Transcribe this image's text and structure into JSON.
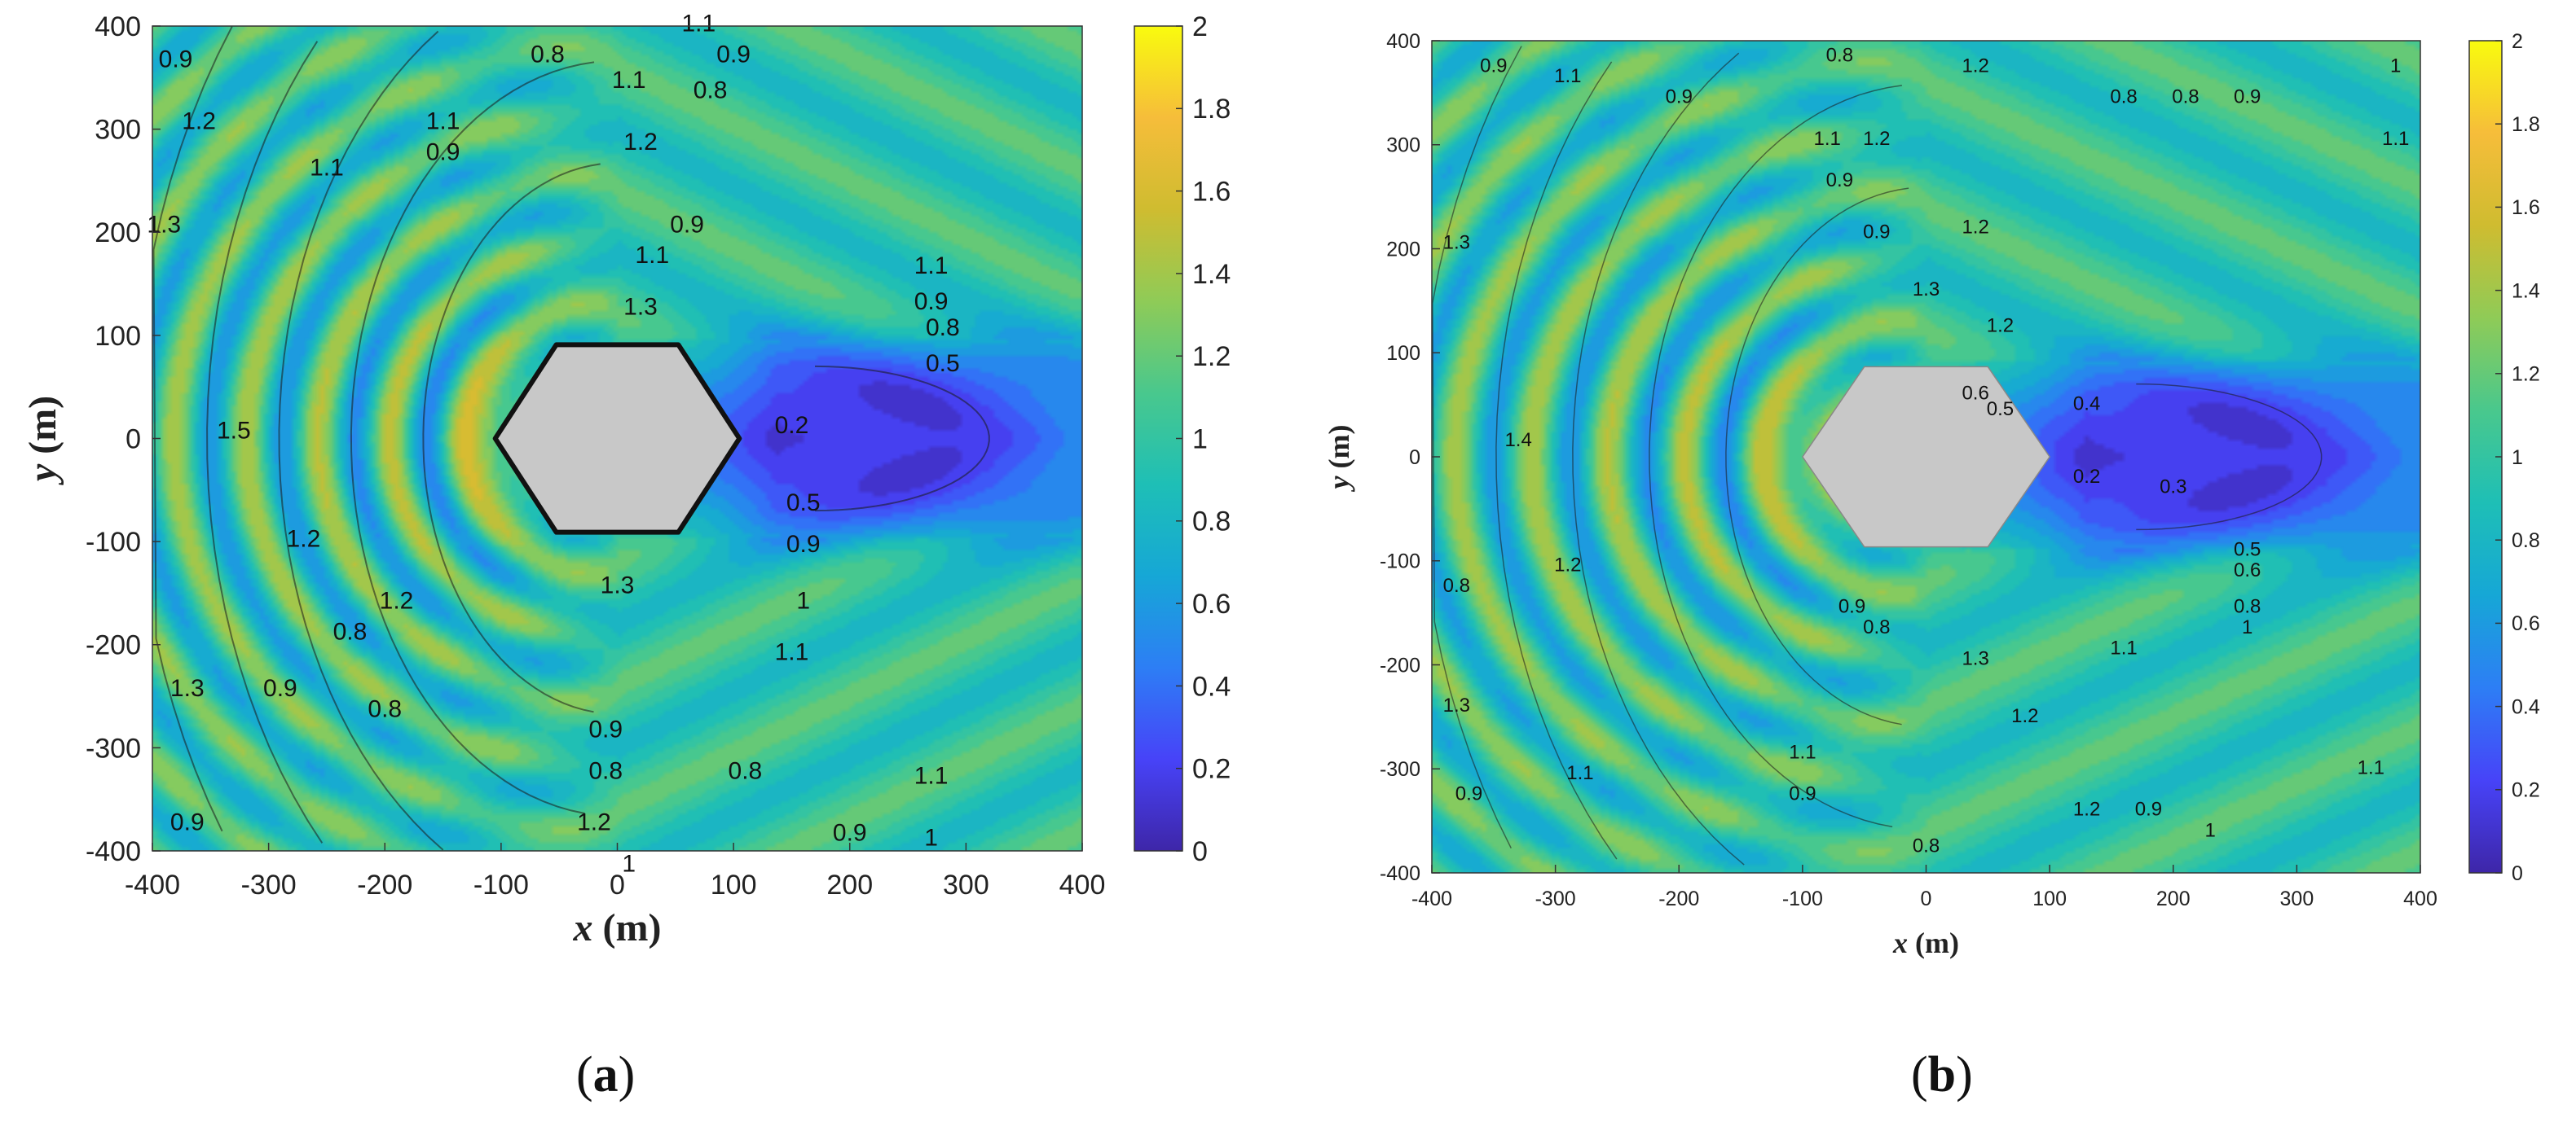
{
  "chart_data": [
    {
      "type": "heatmap",
      "panel_label": "a",
      "x_axis_name": "x",
      "y_axis_name": "y",
      "unit": "(m)",
      "xlim": [
        -400,
        400
      ],
      "ylim": [
        -400,
        400
      ],
      "xticks": [
        -400,
        -300,
        -200,
        -100,
        0,
        100,
        200,
        300,
        400
      ],
      "yticks": [
        -400,
        -300,
        -200,
        -100,
        0,
        100,
        200,
        300,
        400
      ],
      "colorbar": {
        "min": 0,
        "max": 2,
        "ticks": [
          0,
          0.2,
          0.4,
          0.6,
          0.8,
          1,
          1.2,
          1.4,
          1.6,
          1.8,
          2
        ]
      },
      "colormap": [
        "#3e26a8",
        "#4743f8",
        "#2d7ef5",
        "#16a7d6",
        "#1ebfb6",
        "#49c88d",
        "#8fcb57",
        "#cfbc30",
        "#f6bd3a",
        "#f9fb0e"
      ],
      "obstacle_color": "#c8c8c8",
      "obstacle_radius": 105,
      "contour_labels": [
        {
          "text": "0.8",
          "x": -60,
          "y": 365
        },
        {
          "text": "1.1",
          "x": 10,
          "y": 340
        },
        {
          "text": "1.2",
          "x": 20,
          "y": 280
        },
        {
          "text": "1.1",
          "x": 70,
          "y": 395
        },
        {
          "text": "0.9",
          "x": 100,
          "y": 365
        },
        {
          "text": "0.8",
          "x": 80,
          "y": 330
        },
        {
          "text": "0.9",
          "x": 60,
          "y": 200
        },
        {
          "text": "1.1",
          "x": 30,
          "y": 170
        },
        {
          "text": "1.3",
          "x": 20,
          "y": 120
        },
        {
          "text": "1.1",
          "x": 270,
          "y": 160
        },
        {
          "text": "0.9",
          "x": 270,
          "y": 125
        },
        {
          "text": "0.8",
          "x": 280,
          "y": 100
        },
        {
          "text": "0.5",
          "x": 280,
          "y": 65
        },
        {
          "text": "0.2",
          "x": 150,
          "y": 5
        },
        {
          "text": "0.5",
          "x": 160,
          "y": -70
        },
        {
          "text": "0.9",
          "x": 160,
          "y": -110
        },
        {
          "text": "1.3",
          "x": 0,
          "y": -150
        },
        {
          "text": "1",
          "x": 160,
          "y": -165
        },
        {
          "text": "1.1",
          "x": 150,
          "y": -215
        },
        {
          "text": "0.9",
          "x": -10,
          "y": -290
        },
        {
          "text": "0.8",
          "x": -10,
          "y": -330
        },
        {
          "text": "0.8",
          "x": 110,
          "y": -330
        },
        {
          "text": "1.2",
          "x": -20,
          "y": -380
        },
        {
          "text": "1.1",
          "x": 270,
          "y": -335
        },
        {
          "text": "0.9",
          "x": 200,
          "y": -390
        },
        {
          "text": "1",
          "x": 270,
          "y": -395
        },
        {
          "text": "1",
          "x": 10,
          "y": -420
        },
        {
          "text": "1.2",
          "x": -270,
          "y": -105
        },
        {
          "text": "0.8",
          "x": -230,
          "y": -195
        },
        {
          "text": "1.2",
          "x": -190,
          "y": -165
        },
        {
          "text": "0.9",
          "x": -290,
          "y": -250
        },
        {
          "text": "0.8",
          "x": -200,
          "y": -270
        },
        {
          "text": "1.3",
          "x": -370,
          "y": -250
        },
        {
          "text": "0.9",
          "x": -370,
          "y": -380
        },
        {
          "text": "1.1",
          "x": -150,
          "y": 300
        },
        {
          "text": "0.9",
          "x": -150,
          "y": 270
        },
        {
          "text": "1.1",
          "x": -250,
          "y": 255
        },
        {
          "text": "0.9",
          "x": -380,
          "y": 360
        },
        {
          "text": "1.2",
          "x": -360,
          "y": 300
        },
        {
          "text": "1.3",
          "x": -390,
          "y": 200
        },
        {
          "text": "1.5",
          "x": -330,
          "y": 0
        }
      ]
    },
    {
      "type": "heatmap",
      "panel_label": "b",
      "x_axis_name": "x",
      "y_axis_name": "y",
      "unit": "(m)",
      "xlim": [
        -400,
        400
      ],
      "ylim": [
        -400,
        400
      ],
      "xticks": [
        -400,
        -300,
        -200,
        -100,
        0,
        100,
        200,
        300,
        400
      ],
      "yticks": [
        -400,
        -300,
        -200,
        -100,
        0,
        100,
        200,
        300,
        400
      ],
      "colorbar": {
        "min": 0,
        "max": 2,
        "ticks": [
          0,
          0.2,
          0.4,
          0.6,
          0.8,
          1,
          1.2,
          1.4,
          1.6,
          1.8,
          2
        ]
      },
      "colormap": [
        "#3e26a8",
        "#4743f8",
        "#2d7ef5",
        "#16a7d6",
        "#1ebfb6",
        "#49c88d",
        "#8fcb57",
        "#cfbc30",
        "#f6bd3a",
        "#f9fb0e"
      ],
      "obstacle_color": "#c8c8c8",
      "obstacle_radius": 100,
      "contour_labels": [
        {
          "text": "0.9",
          "x": -350,
          "y": 370
        },
        {
          "text": "1.1",
          "x": -290,
          "y": 360
        },
        {
          "text": "0.9",
          "x": -200,
          "y": 340
        },
        {
          "text": "1.1",
          "x": -80,
          "y": 300
        },
        {
          "text": "0.9",
          "x": -70,
          "y": 260
        },
        {
          "text": "0.8",
          "x": -70,
          "y": 380
        },
        {
          "text": "0.9",
          "x": -40,
          "y": 210
        },
        {
          "text": "1.2",
          "x": -40,
          "y": 300
        },
        {
          "text": "1.2",
          "x": 40,
          "y": 370
        },
        {
          "text": "0.8",
          "x": 160,
          "y": 340
        },
        {
          "text": "0.8",
          "x": 210,
          "y": 340
        },
        {
          "text": "0.9",
          "x": 260,
          "y": 340
        },
        {
          "text": "1",
          "x": 380,
          "y": 370
        },
        {
          "text": "1.1",
          "x": 380,
          "y": 300
        },
        {
          "text": "1.2",
          "x": 40,
          "y": 215
        },
        {
          "text": "1.3",
          "x": 0,
          "y": 155
        },
        {
          "text": "1.2",
          "x": 60,
          "y": 120
        },
        {
          "text": "0.6",
          "x": 40,
          "y": 55
        },
        {
          "text": "0.5",
          "x": 60,
          "y": 40
        },
        {
          "text": "0.4",
          "x": 130,
          "y": 45
        },
        {
          "text": "0.2",
          "x": 130,
          "y": -25
        },
        {
          "text": "0.3",
          "x": 200,
          "y": -35
        },
        {
          "text": "0.5",
          "x": 260,
          "y": -95
        },
        {
          "text": "0.6",
          "x": 260,
          "y": -115
        },
        {
          "text": "0.8",
          "x": 260,
          "y": -150
        },
        {
          "text": "1",
          "x": 260,
          "y": -170
        },
        {
          "text": "1.1",
          "x": 160,
          "y": -190
        },
        {
          "text": "0.9",
          "x": -60,
          "y": -150
        },
        {
          "text": "0.8",
          "x": -40,
          "y": -170
        },
        {
          "text": "1.3",
          "x": 40,
          "y": -200
        },
        {
          "text": "1.2",
          "x": 80,
          "y": -255
        },
        {
          "text": "1.1",
          "x": 360,
          "y": -305
        },
        {
          "text": "1",
          "x": 230,
          "y": -365
        },
        {
          "text": "0.9",
          "x": 180,
          "y": -345
        },
        {
          "text": "1.2",
          "x": 130,
          "y": -345
        },
        {
          "text": "0.8",
          "x": 0,
          "y": -380
        },
        {
          "text": "1.1",
          "x": -100,
          "y": -290
        },
        {
          "text": "0.9",
          "x": -100,
          "y": -330
        },
        {
          "text": "1.1",
          "x": -280,
          "y": -310
        },
        {
          "text": "0.9",
          "x": -370,
          "y": -330
        },
        {
          "text": "1.3",
          "x": -380,
          "y": -245
        },
        {
          "text": "1.2",
          "x": -290,
          "y": -110
        },
        {
          "text": "0.8",
          "x": -380,
          "y": -130
        },
        {
          "text": "1.3",
          "x": -380,
          "y": 200
        },
        {
          "text": "1.4",
          "x": -330,
          "y": 10
        }
      ]
    }
  ]
}
